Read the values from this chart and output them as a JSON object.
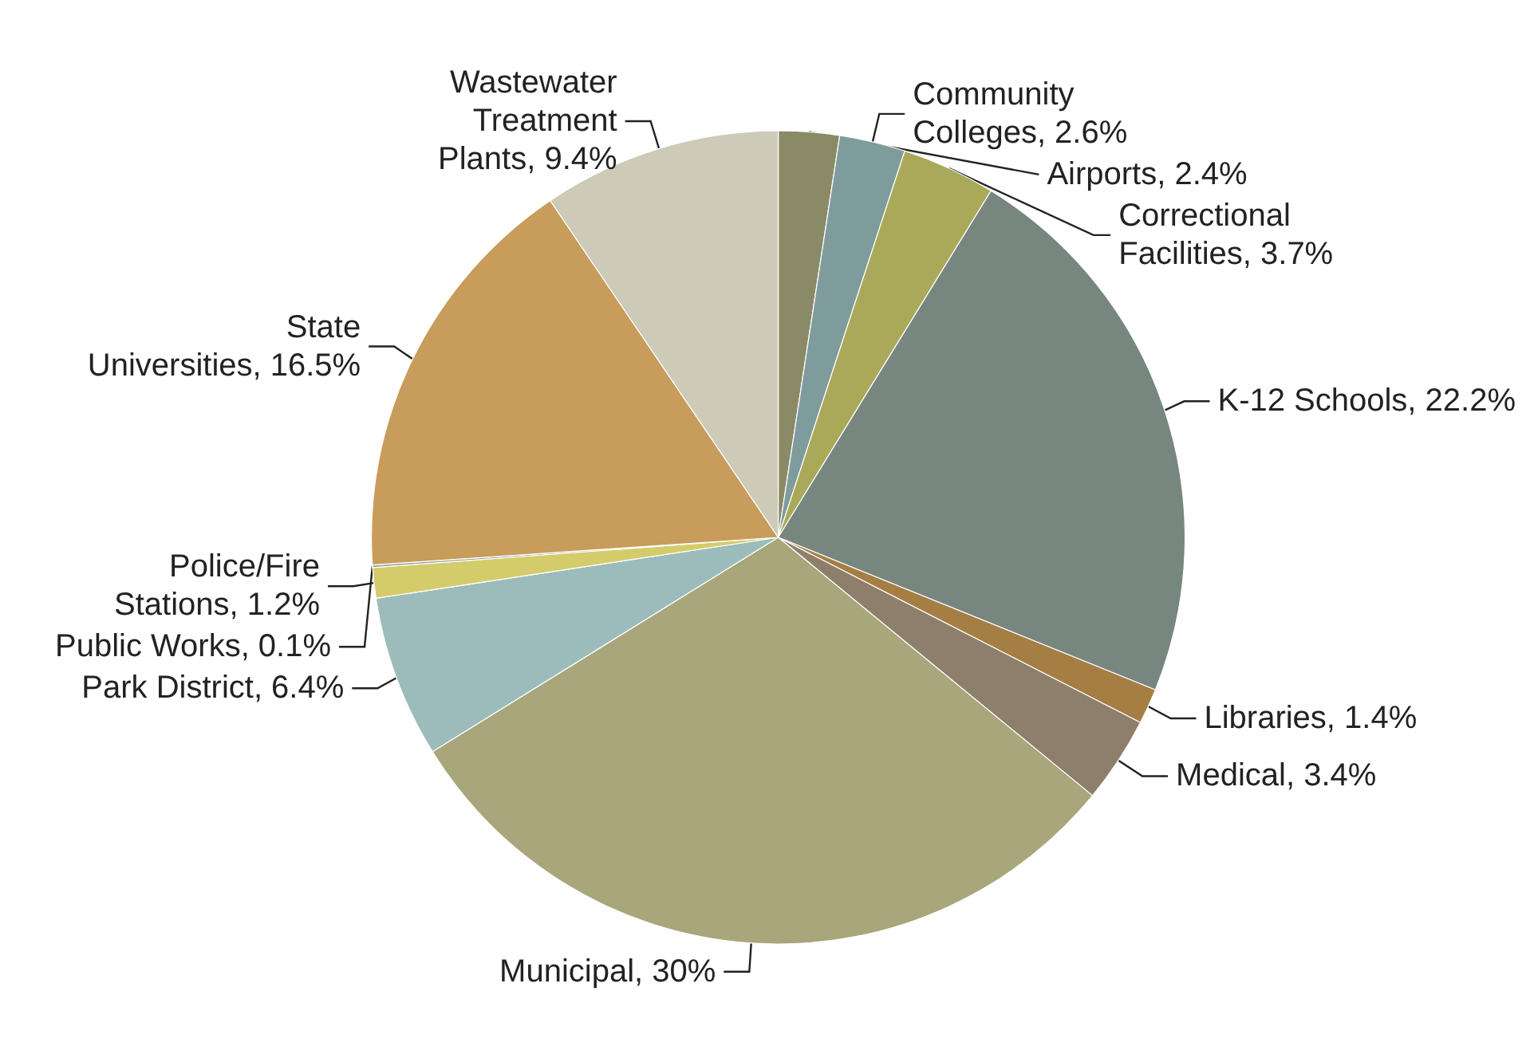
{
  "chart_data": {
    "type": "pie",
    "categories": [
      "Airports",
      "Community Colleges",
      "Correctional Facilities",
      "K-12 Schools",
      "Libraries",
      "Medical",
      "Municipal",
      "Park District",
      "Police/Fire Stations",
      "Public Works",
      "State Universities",
      "Wastewater Treatment Plants"
    ],
    "values": [
      2.4,
      2.6,
      3.7,
      22.2,
      1.4,
      3.4,
      30,
      6.4,
      1.2,
      0.1,
      16.5,
      9.4
    ],
    "colors": [
      "#8b8a66",
      "#7f9c9c",
      "#aaa95a",
      "#788680",
      "#a57e44",
      "#8e7f6c",
      "#a8a67a",
      "#9cbcbb",
      "#d4cc6a",
      "#9aa59f",
      "#c89c5a",
      "#cdcab8"
    ],
    "value_labels": [
      "2.4%",
      "2.6%",
      "3.7%",
      "22.2%",
      "1.4%",
      "3.4%",
      "30%",
      "6.4%",
      "1.2%",
      "0.1%",
      "16.5%",
      "9.4%"
    ],
    "legend": false
  }
}
